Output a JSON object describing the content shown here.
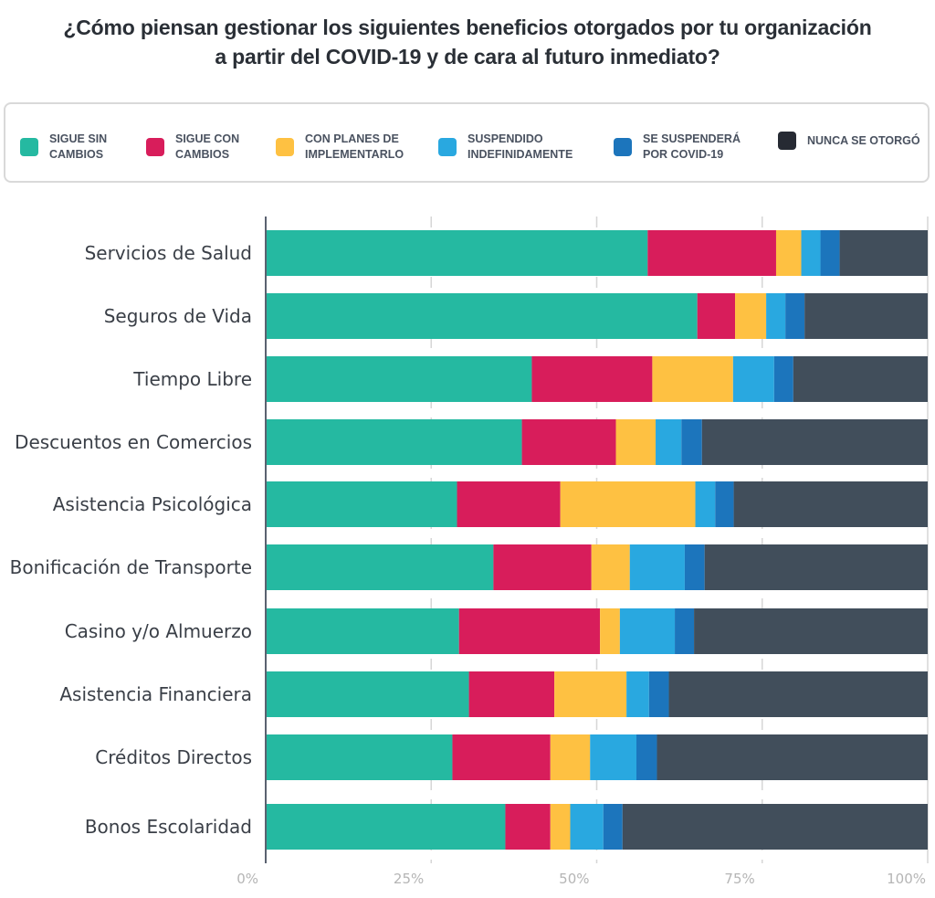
{
  "chart_data": {
    "type": "bar",
    "orientation": "horizontal",
    "stacked": true,
    "normalized": true,
    "title": "¿Cómo piensan gestionar los siguientes beneficios otorgados por tu organización a partir del COVID-19 y de cara al futuro inmediato?",
    "title_lines": [
      "¿Cómo piensan gestionar los siguientes beneficios otorgados por tu organización",
      "a partir del COVID-19 y de cara al futuro inmediato?"
    ],
    "xlabel": "",
    "ylabel": "",
    "xlim": [
      0,
      100
    ],
    "x_ticks": [
      0,
      25,
      50,
      75,
      100
    ],
    "x_tick_labels": [
      "0%",
      "25%",
      "50%",
      "75%",
      "100%"
    ],
    "grid": true,
    "legend_position": "top",
    "categories": [
      "Servicios de Salud",
      "Seguros de Vida",
      "Tiempo Libre",
      "Descuentos en Comercios",
      "Asistencia Psicológica",
      "Bonificación de Transporte",
      "Casino y/o Almuerzo",
      "Asistencia Financiera",
      "Créditos Directos",
      "Bonos Escolaridad"
    ],
    "series": [
      {
        "name": "SIGUE SIN CAMBIOS",
        "legend_lines": "SIGUE SIN\nCAMBIOS",
        "color": "#25b9a1",
        "values": [
          57.7,
          65.2,
          40.2,
          38.7,
          28.9,
          34.4,
          29.2,
          30.7,
          28.2,
          36.2
        ]
      },
      {
        "name": "SIGUE CON CAMBIOS",
        "legend_lines": "SIGUE CON\nCAMBIOS",
        "color": "#d81d5b",
        "values": [
          19.4,
          5.7,
          18.2,
          14.2,
          15.6,
          14.8,
          21.3,
          12.9,
          14.8,
          6.8
        ]
      },
      {
        "name": "CON PLANES DE IMPLEMENTARLO",
        "legend_lines": "CON PLANES DE\nIMPLEMENTARLO",
        "color": "#fec142",
        "values": [
          3.8,
          4.7,
          12.2,
          6.0,
          20.4,
          5.8,
          3.0,
          10.9,
          6.0,
          3.0
        ]
      },
      {
        "name": "SUSPENDIDO INDEFINIDAMENTE",
        "legend_lines": "SUSPENDIDO\nINDEFINIDAMENTE",
        "color": "#29a8e0",
        "values": [
          2.9,
          2.9,
          6.2,
          3.9,
          3.0,
          8.3,
          8.3,
          3.4,
          7.0,
          5.0
        ]
      },
      {
        "name": "SE SUSPENDERÁ POR COVID-19",
        "legend_lines": "SE SUSPENDERÁ\nPOR COVID-19",
        "color": "#1c75bc",
        "values": [
          2.9,
          2.9,
          2.9,
          3.1,
          2.8,
          3.0,
          2.9,
          3.0,
          3.1,
          2.9
        ]
      },
      {
        "name": "NUNCA SE OTORGÓ",
        "legend_lines": "NUNCA SE OTORGÓ",
        "color": "#414e5b",
        "legend_color": "#262a33",
        "values": [
          13.3,
          18.6,
          20.3,
          34.1,
          29.3,
          33.7,
          35.3,
          39.1,
          40.9,
          46.1
        ]
      }
    ]
  }
}
